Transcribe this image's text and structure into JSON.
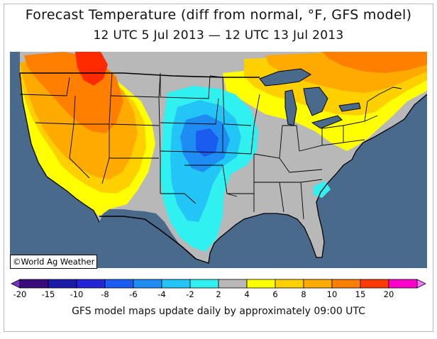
{
  "title": "Forecast Temperature (diff from normal, °F, GFS model)",
  "subtitle": "12 UTC 5 Jul 2013 — 12 UTC 13 Jul 2013",
  "credit": "©World Ag Weather",
  "footer": "GFS model maps update daily by approximately 09:00 UTC",
  "colorbar": {
    "bins": [
      {
        "color": "#3a0a7a",
        "label": "-20"
      },
      {
        "color": "#1b1ba8",
        "label": "-15"
      },
      {
        "color": "#2424d8",
        "label": "-10"
      },
      {
        "color": "#1a5cf0",
        "label": "-8"
      },
      {
        "color": "#1e8cf2",
        "label": "-6"
      },
      {
        "color": "#22c5f5",
        "label": "-4"
      },
      {
        "color": "#30f0f0",
        "label": "-2"
      },
      {
        "color": "#b8b8b8",
        "label": "2"
      },
      {
        "color": "#ffff00",
        "label": "4"
      },
      {
        "color": "#ffd000",
        "label": "6"
      },
      {
        "color": "#ffaa00",
        "label": "8"
      },
      {
        "color": "#ff7f00",
        "label": "10"
      },
      {
        "color": "#ff3a00",
        "label": "15"
      },
      {
        "color": "#ff00cc",
        "label": "20"
      }
    ],
    "low_color": "#7a30c8",
    "high_color": "#ff70ff"
  },
  "map_colors": {
    "ocean": "#4a6a8c",
    "neutral": "#b8b8b8",
    "plus4": "#ffff00",
    "plus6": "#ffd000",
    "plus8": "#ffaa00",
    "plus10": "#ff7f00",
    "plus15": "#ff2a00",
    "minus2": "#30f0f0",
    "minus4": "#22c5f5",
    "minus6": "#1e8cf2",
    "minus8": "#1a5cf0",
    "border": "#000000"
  }
}
